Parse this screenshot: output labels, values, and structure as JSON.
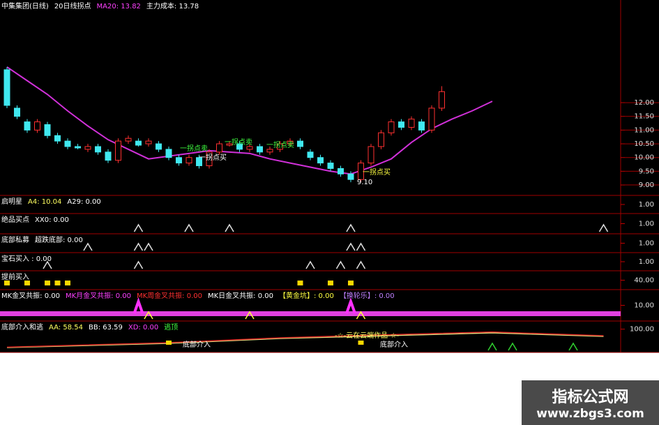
{
  "chart_data": [
    {
      "type": "candlestick",
      "header": [
        {
          "text": "中集集团(日线)",
          "color": "#ffffff"
        },
        {
          "text": "20日线拐点",
          "color": "#ffffff"
        },
        {
          "text": "MA20: 13.82",
          "color": "#ff40ff"
        },
        {
          "text": "主力成本: 13.78",
          "color": "#ffffff"
        }
      ],
      "open": [
        13.2,
        11.8,
        11.3,
        11.0,
        11.2,
        10.8,
        10.6,
        10.4,
        10.3,
        10.4,
        10.2,
        9.9,
        10.6,
        10.6,
        10.5,
        10.5,
        10.3,
        10.0,
        9.8,
        10.0,
        9.7,
        10.2,
        10.45,
        10.5,
        10.3,
        10.4,
        10.2,
        10.3,
        10.5,
        10.6,
        10.2,
        10.0,
        9.8,
        9.6,
        9.4,
        9.2,
        9.8,
        10.4,
        10.9,
        11.3,
        11.1,
        11.3,
        11.0,
        11.8
      ],
      "high": [
        13.3,
        11.9,
        11.4,
        11.4,
        11.3,
        10.9,
        10.7,
        10.5,
        10.5,
        10.5,
        10.3,
        10.7,
        10.8,
        10.7,
        10.7,
        10.6,
        10.4,
        10.1,
        10.1,
        10.1,
        10.3,
        10.6,
        10.6,
        10.6,
        10.5,
        10.5,
        10.4,
        10.6,
        10.7,
        10.7,
        10.3,
        10.1,
        9.9,
        9.7,
        9.5,
        9.9,
        10.5,
        11.0,
        11.4,
        11.4,
        11.5,
        11.4,
        11.9,
        12.6
      ],
      "low": [
        11.8,
        11.4,
        10.9,
        10.9,
        10.7,
        10.5,
        10.3,
        10.3,
        10.2,
        10.1,
        9.8,
        9.8,
        10.5,
        10.4,
        10.4,
        10.2,
        9.9,
        9.7,
        9.7,
        9.6,
        9.6,
        10.1,
        10.4,
        10.2,
        10.2,
        10.1,
        10.1,
        10.2,
        10.4,
        10.3,
        9.9,
        9.7,
        9.5,
        9.3,
        9.1,
        9.1,
        9.7,
        10.3,
        10.8,
        11.0,
        11.0,
        10.9,
        10.9,
        11.7
      ],
      "close": [
        11.9,
        11.5,
        11.0,
        11.3,
        10.8,
        10.6,
        10.4,
        10.35,
        10.4,
        10.2,
        9.9,
        10.6,
        10.7,
        10.45,
        10.6,
        10.3,
        10.0,
        9.8,
        10.0,
        9.7,
        10.2,
        10.5,
        10.5,
        10.3,
        10.4,
        10.2,
        10.3,
        10.5,
        10.6,
        10.4,
        10.0,
        9.8,
        9.6,
        9.4,
        9.2,
        9.8,
        10.4,
        10.9,
        11.3,
        11.1,
        11.4,
        11.0,
        11.8,
        12.4
      ],
      "up_color": "#ff3030",
      "down_color": "#40e8f0",
      "lines": [
        {
          "x": [
            0,
            2,
            4,
            6,
            8,
            10,
            12,
            14,
            16,
            18,
            20,
            22,
            24,
            26,
            28,
            30,
            32,
            34,
            36,
            38,
            40,
            42,
            44,
            46,
            48
          ],
          "values": [
            13.3,
            12.8,
            12.3,
            11.7,
            11.15,
            10.65,
            10.3,
            9.95,
            10.05,
            10.15,
            10.25,
            10.2,
            10.15,
            9.95,
            9.8,
            9.65,
            9.5,
            9.4,
            9.65,
            9.95,
            10.55,
            11.05,
            11.4,
            11.7,
            12.05
          ],
          "color": "#d030d8"
        }
      ],
      "annotations": [
        {
          "text": "一拐点买",
          "color": "#ffff40"
        },
        {
          "text": "9.10",
          "color": "#ffffff"
        },
        {
          "text": "一拐点卖",
          "color": "#40ff40"
        },
        {
          "text": "一拐点卖",
          "color": "#40ff40"
        },
        {
          "text": "一拐点卖",
          "color": "#40ff40"
        },
        {
          "text": "一拐点买",
          "color": "#ffffff"
        }
      ],
      "ylim": [
        8.62,
        15.74
      ],
      "yticks": [
        {
          "value": 9,
          "label": "9.00"
        },
        {
          "value": 9.5,
          "label": "9.50"
        },
        {
          "value": 10,
          "label": "10.00"
        },
        {
          "value": 10.5,
          "label": "10.50"
        },
        {
          "value": 11,
          "label": "11.00"
        },
        {
          "value": 11.5,
          "label": "11.50"
        },
        {
          "value": 12,
          "label": "12.00"
        }
      ]
    },
    {
      "type": "signal",
      "labels": [
        {
          "text": "启明星",
          "color": "#ffffff"
        },
        {
          "text": "A4: 10.04",
          "color": "#ffff60"
        },
        {
          "text": "A29: 0.00",
          "color": "#ffffff"
        }
      ],
      "ylim": [
        0,
        2
      ],
      "yticks": [
        {
          "value": 1,
          "label": "1.00"
        }
      ],
      "markers": []
    },
    {
      "type": "signal",
      "labels": [
        {
          "text": "绝品买点",
          "color": "#ffffff"
        },
        {
          "text": "XX0: 0.00",
          "color": "#ffffff"
        }
      ],
      "ylim": [
        0,
        2
      ],
      "yticks": [
        {
          "value": 1,
          "label": "1.00"
        }
      ],
      "markers": [
        {
          "shape": "triangle",
          "color": "#e0e0e0",
          "x": [
            13,
            18,
            22,
            34,
            59
          ]
        }
      ]
    },
    {
      "type": "signal",
      "labels": [
        {
          "text": "底部私募",
          "color": "#ffffff"
        },
        {
          "text": "超跌底部: 0.00",
          "color": "#ffffff"
        }
      ],
      "ylim": [
        0,
        2
      ],
      "yticks": [
        {
          "value": 1,
          "label": "1.00"
        }
      ],
      "markers": [
        {
          "shape": "triangle",
          "color": "#e0e0e0",
          "x": [
            8,
            13,
            14,
            34,
            35
          ]
        }
      ]
    },
    {
      "type": "signal",
      "labels": [
        {
          "text": "宝石买入 : 0.00",
          "color": "#ffffff"
        }
      ],
      "ylim": [
        0,
        2
      ],
      "yticks": [
        {
          "value": 1,
          "label": "1.00"
        }
      ],
      "markers": [
        {
          "shape": "triangle",
          "color": "#e0e0e0",
          "x": [
            4,
            13,
            30,
            33,
            35
          ]
        }
      ]
    },
    {
      "type": "signal",
      "labels": [
        {
          "text": "提前买入",
          "color": "#ffffff"
        }
      ],
      "ylim": [
        0,
        80
      ],
      "yticks": [
        {
          "value": 40,
          "label": "40.00"
        }
      ],
      "markers": [
        {
          "shape": "square",
          "color": "#ffd800",
          "x": [
            0,
            2,
            4,
            5,
            6,
            29,
            32,
            34
          ]
        }
      ]
    },
    {
      "type": "signal",
      "labels": [
        {
          "text": "MK金叉共振: 0.00",
          "color": "#ffffff"
        },
        {
          "text": "MK月金叉共振: 0.00",
          "color": "#ff40ff"
        },
        {
          "text": "MK周金叉共振: 0.00",
          "color": "#ff3030"
        },
        {
          "text": "MK日金叉共振: 0.00",
          "color": "#ffffff"
        },
        {
          "text": "【黄金坑】: 0.00",
          "color": "#ffff40"
        },
        {
          "text": "【换轮乐】: 0.00",
          "color": "#c080ff"
        }
      ],
      "ylim": [
        0,
        20
      ],
      "yticks": [
        {
          "value": 10,
          "label": "10.00"
        }
      ],
      "band_color": "#e040e0",
      "markers": [
        {
          "shape": "triangle",
          "color": "#ffff40",
          "x": [
            14,
            24,
            35
          ]
        },
        {
          "shape": "triangle-large",
          "color": "#ff30ff",
          "x": [
            13,
            34
          ]
        }
      ]
    },
    {
      "type": "signal",
      "labels": [
        {
          "text": "底部介入和逃",
          "color": "#ffffff"
        },
        {
          "text": "AA: 58.54",
          "color": "#ffff60"
        },
        {
          "text": "BB: 63.59",
          "color": "#ffffff"
        },
        {
          "text": "XD: 0.00",
          "color": "#ff40ff"
        },
        {
          "text": "逃顶",
          "color": "#40ff40"
        }
      ],
      "ylim": [
        0,
        135
      ],
      "yticks": [
        {
          "value": 100,
          "label": "100.00"
        }
      ],
      "lines": [
        {
          "x": [
            0,
            16,
            27,
            35,
            48,
            59
          ],
          "values": [
            21,
            39,
            60,
            69,
            84,
            69
          ],
          "color": "#e8e080"
        },
        {
          "x": [
            0,
            16,
            27,
            35,
            48,
            59
          ],
          "values": [
            23,
            42,
            63,
            73,
            88,
            72
          ],
          "color": "#d02020"
        }
      ],
      "markers": [
        {
          "shape": "triangle",
          "color": "#30d030",
          "x": [
            48,
            50,
            56
          ]
        },
        {
          "shape": "square-low",
          "color": "#ffd800",
          "x": [
            16,
            35
          ]
        }
      ],
      "annotations": [
        {
          "text": "-☆-云在云端作品-☆-",
          "color": "#ffff60"
        },
        {
          "text": "底部介入",
          "color": "#ffffff"
        },
        {
          "text": "底部介入",
          "color": "#ffffff"
        }
      ]
    }
  ],
  "watermark": {
    "title": "指标公式网",
    "url": "www.zbgs3.com"
  }
}
